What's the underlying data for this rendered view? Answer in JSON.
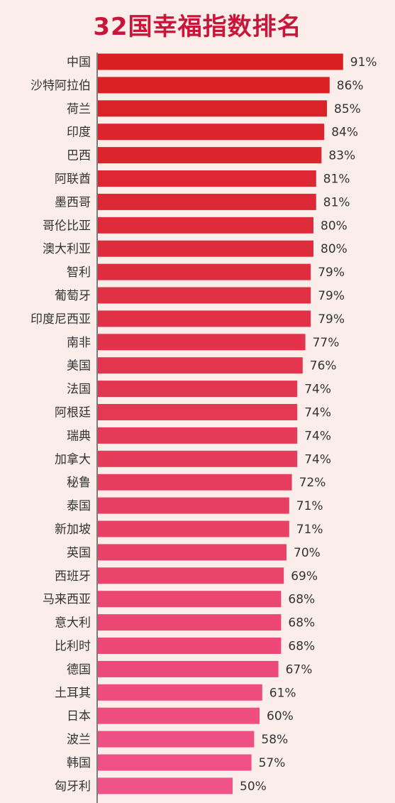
{
  "chart_data": {
    "type": "bar",
    "orientation": "horizontal",
    "title": "32国幸福指数排名",
    "value_format": "percent",
    "xlim": [
      0,
      100
    ],
    "categories": [
      "中国",
      "沙特阿拉伯",
      "荷兰",
      "印度",
      "巴西",
      "阿联酋",
      "墨西哥",
      "哥伦比亚",
      "澳大利亚",
      "智利",
      "葡萄牙",
      "印度尼西亚",
      "南非",
      "美国",
      "法国",
      "阿根廷",
      "瑞典",
      "加拿大",
      "秘鲁",
      "泰国",
      "新加坡",
      "英国",
      "西班牙",
      "马来西亚",
      "意大利",
      "比利时",
      "德国",
      "土耳其",
      "日本",
      "波兰",
      "韩国",
      "匈牙利"
    ],
    "values": [
      91,
      86,
      85,
      84,
      83,
      81,
      81,
      80,
      80,
      79,
      79,
      79,
      77,
      76,
      74,
      74,
      74,
      74,
      72,
      71,
      71,
      70,
      69,
      68,
      68,
      68,
      67,
      61,
      60,
      58,
      57,
      50
    ],
    "value_labels": [
      "91%",
      "86%",
      "85%",
      "84%",
      "83%",
      "81%",
      "81%",
      "80%",
      "80%",
      "79%",
      "79%",
      "79%",
      "77%",
      "76%",
      "74%",
      "74%",
      "74%",
      "74%",
      "72%",
      "71%",
      "71%",
      "70%",
      "69%",
      "68%",
      "68%",
      "68%",
      "67%",
      "61%",
      "60%",
      "58%",
      "57%",
      "50%"
    ],
    "colors": {
      "bar_start": "#d91f22",
      "bar_end": "#f0538a",
      "title": "#c8163a",
      "axis": "#555555",
      "background": "#fbeeea"
    },
    "grid": false,
    "legend": "none"
  }
}
